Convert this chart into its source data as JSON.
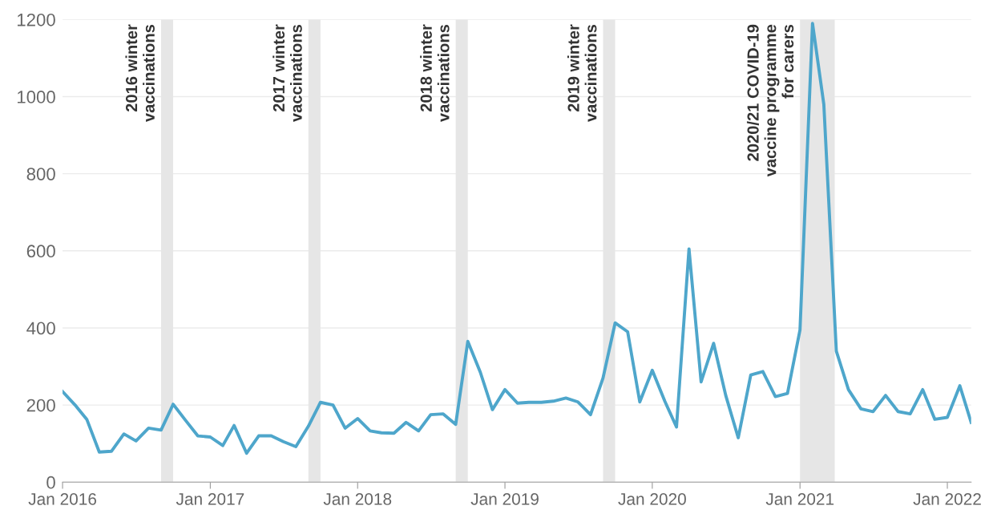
{
  "chart_data": {
    "type": "line",
    "x": [
      "2016-01",
      "2016-02",
      "2016-03",
      "2016-04",
      "2016-05",
      "2016-06",
      "2016-07",
      "2016-08",
      "2016-09",
      "2016-10",
      "2016-11",
      "2016-12",
      "2017-01",
      "2017-02",
      "2017-03",
      "2017-04",
      "2017-05",
      "2017-06",
      "2017-07",
      "2017-08",
      "2017-09",
      "2017-10",
      "2017-11",
      "2017-12",
      "2018-01",
      "2018-02",
      "2018-03",
      "2018-04",
      "2018-05",
      "2018-06",
      "2018-07",
      "2018-08",
      "2018-09",
      "2018-10",
      "2018-11",
      "2018-12",
      "2019-01",
      "2019-02",
      "2019-03",
      "2019-04",
      "2019-05",
      "2019-06",
      "2019-07",
      "2019-08",
      "2019-09",
      "2019-10",
      "2019-11",
      "2019-12",
      "2020-01",
      "2020-02",
      "2020-03",
      "2020-04",
      "2020-05",
      "2020-06",
      "2020-07",
      "2020-08",
      "2020-09",
      "2020-10",
      "2020-11",
      "2020-12",
      "2021-01",
      "2021-02",
      "2021-03",
      "2021-04",
      "2021-05",
      "2021-06",
      "2021-07",
      "2021-08",
      "2021-09",
      "2021-10",
      "2021-11",
      "2021-12",
      "2022-01",
      "2022-02",
      "2022-03"
    ],
    "series": [
      {
        "color": "#4ea6cb",
        "values": [
          235,
          200,
          163,
          78,
          80,
          125,
          107,
          140,
          135,
          202,
          160,
          120,
          117,
          95,
          147,
          75,
          120,
          120,
          105,
          92,
          145,
          207,
          200,
          140,
          165,
          133,
          128,
          127,
          155,
          133,
          175,
          177,
          150,
          365,
          285,
          188,
          240,
          205,
          207,
          207,
          210,
          218,
          208,
          175,
          270,
          413,
          390,
          208,
          290,
          210,
          143,
          605,
          260,
          360,
          225,
          115,
          278,
          287,
          222,
          230,
          395,
          1190,
          980,
          340,
          240,
          190,
          183,
          225,
          183,
          177,
          240,
          163,
          168,
          250,
          155
        ]
      }
    ],
    "xlim": [
      "2016-01",
      "2022-03"
    ],
    "xticks": [
      {
        "value": "2016-01",
        "label": "Jan 2016"
      },
      {
        "value": "2017-01",
        "label": "Jan 2017"
      },
      {
        "value": "2018-01",
        "label": "Jan 2018"
      },
      {
        "value": "2019-01",
        "label": "Jan 2019"
      },
      {
        "value": "2020-01",
        "label": "Jan 2020"
      },
      {
        "value": "2021-01",
        "label": "Jan 2021"
      },
      {
        "value": "2022-01",
        "label": "Jan 2022"
      }
    ],
    "ylim": [
      0,
      1200
    ],
    "yticks": [
      0,
      200,
      400,
      600,
      800,
      1000,
      1200
    ],
    "grid": "y",
    "line_style": "solid",
    "bands": [
      {
        "axis": "x",
        "from": "2016-09-01",
        "to": "2016-10-01",
        "label": "2016 winter\nvaccinations",
        "color": "#e6e6e6"
      },
      {
        "axis": "x",
        "from": "2017-09-01",
        "to": "2017-10-01",
        "label": "2017 winter\nvaccinations",
        "color": "#e6e6e6"
      },
      {
        "axis": "x",
        "from": "2018-09-01",
        "to": "2018-10-01",
        "label": "2018 winter\nvaccinations",
        "color": "#e6e6e6"
      },
      {
        "axis": "x",
        "from": "2019-09-01",
        "to": "2019-10-01",
        "label": "2019 winter\nvaccinations",
        "color": "#e6e6e6"
      },
      {
        "axis": "x",
        "from": "2021-01-01",
        "to": "2021-03-28",
        "label": "2020/21 COVID-19\nvaccine programme\nfor carers",
        "color": "#e6e6e6"
      }
    ]
  }
}
